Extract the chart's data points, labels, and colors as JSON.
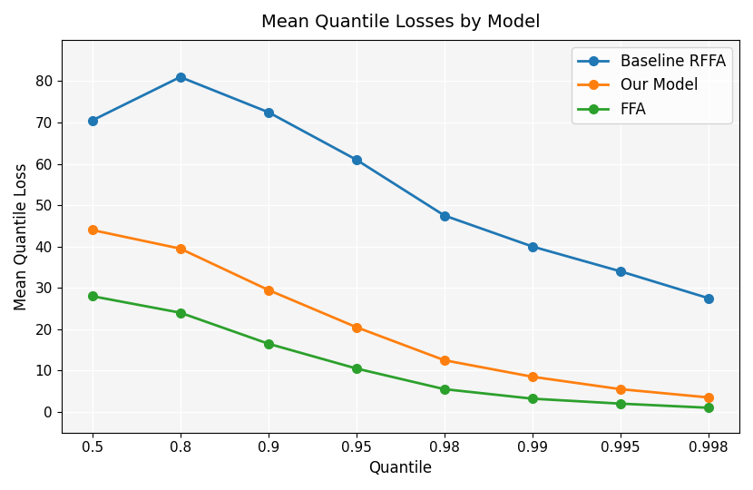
{
  "title": "Mean Quantile Losses by Model",
  "xlabel": "Quantile",
  "ylabel": "Mean Quantile Loss",
  "quantiles": [
    0.5,
    0.8,
    0.9,
    0.95,
    0.98,
    0.99,
    0.995,
    0.998
  ],
  "quantile_labels": [
    "0.5",
    "0.8",
    "0.9",
    "0.95",
    "0.98",
    "0.99",
    "0.995",
    "0.998"
  ],
  "series": [
    {
      "label": "Baseline RFFA",
      "color": "#1f77b4",
      "values": [
        70.5,
        81.0,
        72.5,
        61.0,
        47.5,
        40.0,
        34.0,
        27.5
      ]
    },
    {
      "label": "Our Model",
      "color": "#ff7f0e",
      "values": [
        44.0,
        39.5,
        29.5,
        20.5,
        12.5,
        8.5,
        5.5,
        3.5
      ]
    },
    {
      "label": "FFA",
      "color": "#2ca02c",
      "values": [
        28.0,
        24.0,
        16.5,
        10.5,
        5.5,
        3.2,
        2.0,
        1.0
      ]
    }
  ],
  "ylim": [
    -5,
    90
  ],
  "yticks": [
    0,
    10,
    20,
    30,
    40,
    50,
    60,
    70,
    80
  ],
  "grid": true,
  "legend_loc": "upper right",
  "title_fontsize": 14,
  "label_fontsize": 12,
  "tick_fontsize": 11,
  "linewidth": 2.0,
  "markersize": 7,
  "background_color": "#ffffff",
  "figure_bg": "#f5f5f5"
}
